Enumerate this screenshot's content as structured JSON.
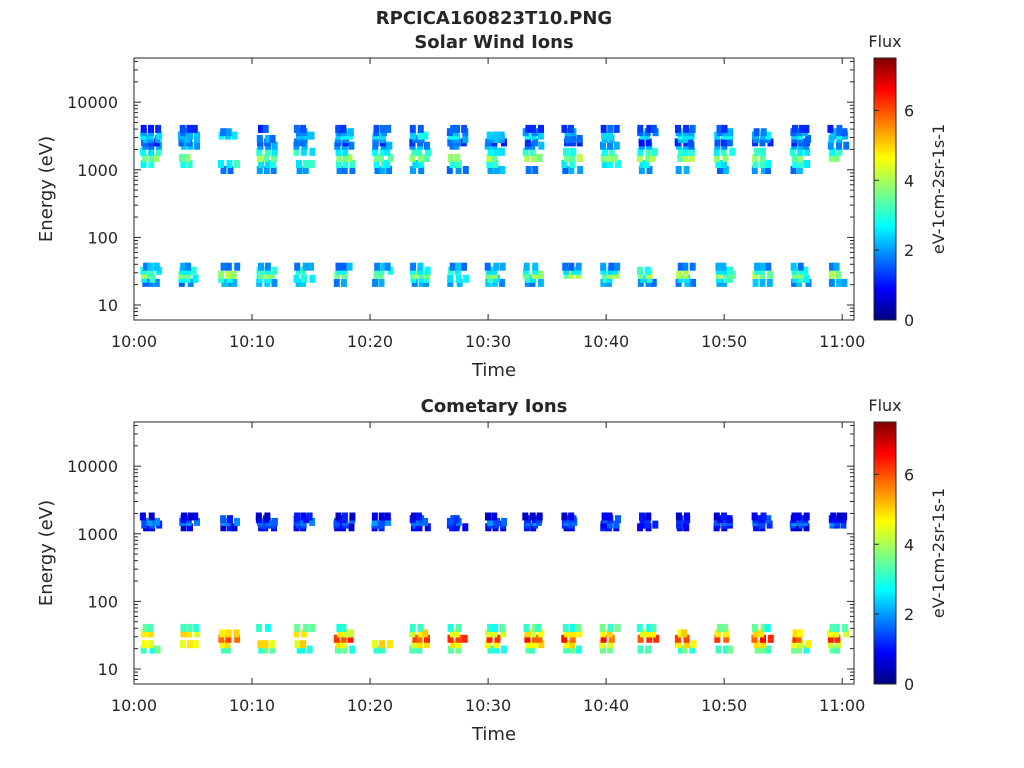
{
  "figure": {
    "filename_title": "RPCICA160823T10.PNG"
  },
  "colors": {
    "axis": "#262626",
    "background": "#ffffff",
    "colormap": "jet"
  },
  "chart_data": [
    {
      "type": "heatmap",
      "title": "Solar Wind Ions",
      "xlabel": "Time",
      "ylabel": "Energy (eV)",
      "yscale": "log",
      "ylim": [
        6,
        45000
      ],
      "xlim_minutes": [
        0,
        61
      ],
      "xticks": [
        "10:00",
        "10:10",
        "10:20",
        "10:30",
        "10:40",
        "10:50",
        "11:00"
      ],
      "yticks": [
        "10",
        "100",
        "1000",
        "10000"
      ],
      "colorbar": {
        "title": "Flux",
        "label": "eV-1cm-2sr-1s-1",
        "range": [
          0,
          7.5
        ],
        "ticks": [
          "0",
          "2",
          "4",
          "6"
        ]
      },
      "grid": false,
      "spike_times": [
        1.2,
        4.4,
        7.8,
        11.0,
        14.2,
        17.6,
        20.8,
        24.0,
        27.2,
        30.4,
        33.6,
        36.9,
        40.1,
        43.3,
        46.5,
        49.8,
        53.0,
        56.2,
        59.4
      ],
      "bands": [
        {
          "center_ev": 1500,
          "spread": 0.18,
          "min": 2.0,
          "max": 4.2
        },
        {
          "center_ev": 3200,
          "spread": 0.1,
          "min": 1.5,
          "max": 3.0
        },
        {
          "center_ev": 28,
          "spread": 0.12,
          "min": 2.0,
          "max": 4.2
        }
      ]
    },
    {
      "type": "heatmap",
      "title": "Cometary Ions",
      "xlabel": "Time",
      "ylabel": "Energy (eV)",
      "yscale": "log",
      "ylim": [
        6,
        45000
      ],
      "xlim_minutes": [
        0,
        61
      ],
      "xticks": [
        "10:00",
        "10:10",
        "10:20",
        "10:30",
        "10:40",
        "10:50",
        "11:00"
      ],
      "yticks": [
        "10",
        "100",
        "1000",
        "10000"
      ],
      "colorbar": {
        "title": "Flux",
        "label": "eV-1cm-2sr-1s-1",
        "range": [
          0,
          7.5
        ],
        "ticks": [
          "0",
          "2",
          "4",
          "6"
        ]
      },
      "grid": false,
      "spike_times": [
        1.2,
        4.4,
        7.8,
        11.0,
        14.2,
        17.6,
        20.8,
        24.0,
        27.2,
        30.4,
        33.6,
        36.9,
        40.1,
        43.3,
        46.5,
        49.8,
        53.0,
        56.2,
        59.4
      ],
      "bands": [
        {
          "center_ev": 1500,
          "spread": 0.08,
          "min": 1.0,
          "max": 2.2
        },
        {
          "center_ev": 28,
          "spread": 0.16,
          "min": 3.0,
          "max": 6.5
        }
      ]
    }
  ]
}
